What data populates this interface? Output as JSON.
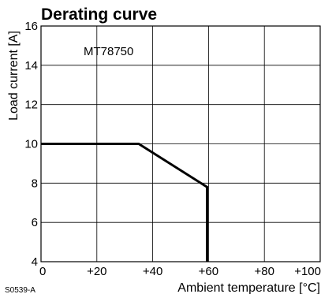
{
  "chart_data": {
    "type": "line",
    "title": "Derating curve",
    "xlabel": "Ambient temperature [°C]",
    "ylabel": "Load current [A]",
    "xlim": [
      0,
      100
    ],
    "ylim": [
      4,
      16
    ],
    "x_ticks": [
      0,
      20,
      40,
      60,
      80,
      100
    ],
    "x_tick_labels": [
      "0",
      "+20",
      "+40",
      "+60",
      "+80",
      "+100"
    ],
    "y_ticks": [
      4,
      6,
      8,
      10,
      12,
      14,
      16
    ],
    "y_tick_labels": [
      "4",
      "6",
      "8",
      "10",
      "12",
      "14",
      "16"
    ],
    "grid": true,
    "annotation": "MT78750",
    "code": "S0539-A",
    "series": [
      {
        "x": [
          0,
          35,
          59.5,
          59.5
        ],
        "y": [
          10,
          10,
          7.8,
          4
        ]
      }
    ],
    "colors": {
      "line": "#000000",
      "grid": "#000000",
      "frame": "#000000"
    }
  }
}
